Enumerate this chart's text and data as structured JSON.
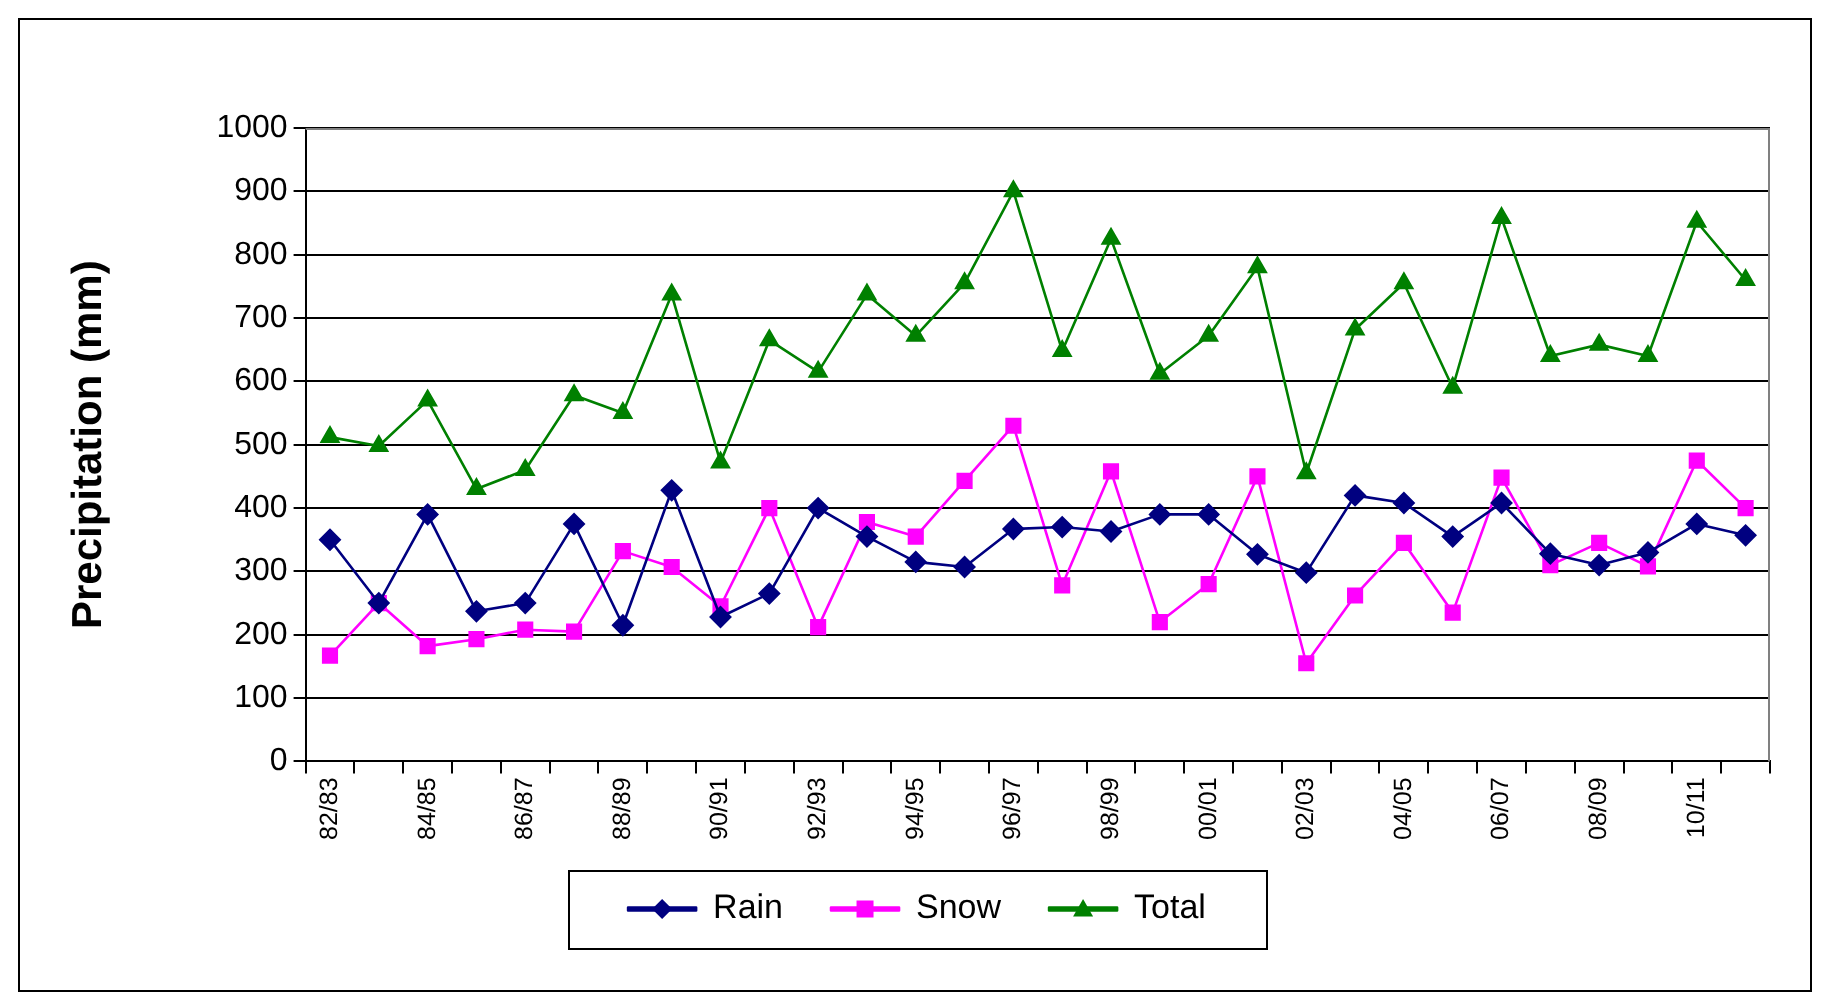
{
  "chart_data": {
    "type": "line",
    "ylabel": "Precipitation (mm)",
    "categories": [
      "82/83",
      null,
      "84/85",
      null,
      "86/87",
      null,
      "88/89",
      null,
      "90/91",
      null,
      "92/93",
      null,
      "94/95",
      null,
      "96/97",
      null,
      "98/99",
      null,
      "00/01",
      null,
      "02/03",
      null,
      "04/05",
      null,
      "06/07",
      null,
      "08/09",
      null,
      "10/11",
      null
    ],
    "series": [
      {
        "name": "Rain",
        "color": "#000080",
        "marker": "diamond",
        "values": [
          350,
          250,
          390,
          237,
          250,
          375,
          215,
          428,
          228,
          265,
          400,
          355,
          315,
          307,
          367,
          370,
          363,
          390,
          390,
          327,
          298,
          420,
          408,
          355,
          408,
          328,
          310,
          330,
          375,
          357
        ]
      },
      {
        "name": "Snow",
        "color": "#ff00ff",
        "marker": "square",
        "values": [
          167,
          250,
          182,
          193,
          208,
          205,
          332,
          307,
          245,
          400,
          212,
          378,
          355,
          443,
          530,
          278,
          458,
          220,
          280,
          450,
          155,
          262,
          345,
          235,
          448,
          310,
          345,
          308,
          475,
          400
        ]
      },
      {
        "name": "Total",
        "color": "#008000",
        "marker": "triangle",
        "values": [
          512,
          498,
          570,
          430,
          460,
          578,
          550,
          737,
          472,
          665,
          615,
          737,
          672,
          755,
          900,
          648,
          825,
          612,
          672,
          780,
          455,
          682,
          755,
          590,
          858,
          640,
          658,
          640,
          852,
          760
        ]
      }
    ],
    "ylim": [
      0,
      1000
    ],
    "yticks": [
      0,
      100,
      200,
      300,
      400,
      500,
      600,
      700,
      800,
      900,
      1000
    ],
    "grid": "y",
    "legend": "bottom"
  }
}
